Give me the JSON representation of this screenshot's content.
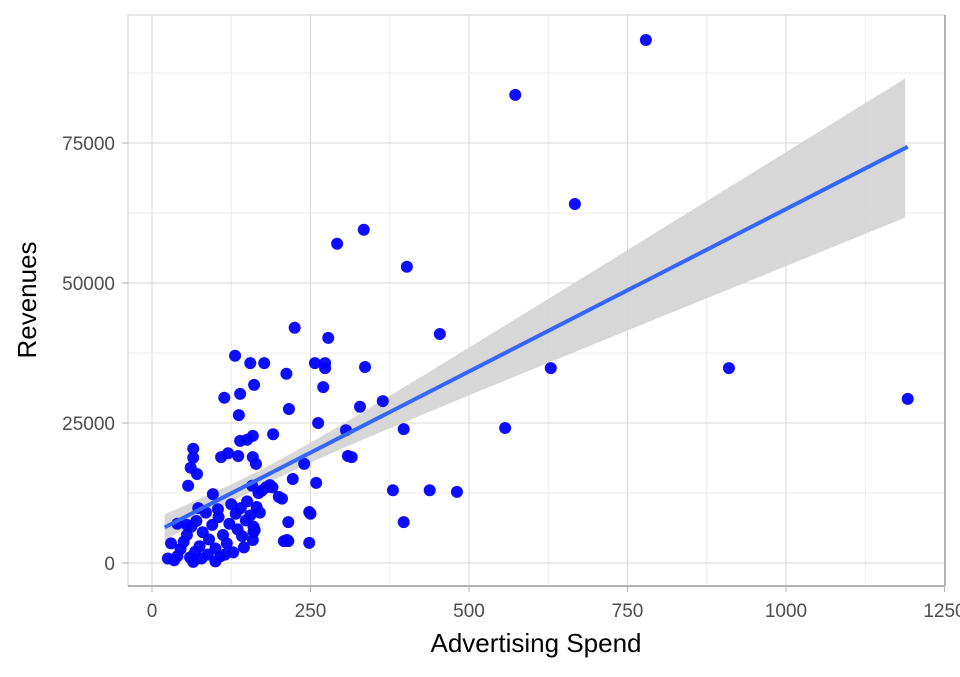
{
  "chart_data": {
    "type": "scatter",
    "title": "",
    "xlabel": "Advertising Spend",
    "ylabel": "Revenues",
    "xlim": [
      -35,
      1250
    ],
    "ylim": [
      -4000,
      98500
    ],
    "xticks": [
      0,
      250,
      500,
      750,
      1000,
      1250
    ],
    "xtick_labels": [
      "0",
      "250",
      "500",
      "750",
      "1000",
      "1250"
    ],
    "yticks": [
      0,
      25000,
      50000,
      75000
    ],
    "ytick_labels": [
      "0",
      "25000",
      "50000",
      "75000"
    ],
    "grid": true,
    "point_color": "#0000FF",
    "fit_color": "#3366FF",
    "ci_color": "#D3D3D3",
    "fit": {
      "method": "linear",
      "intercept": 5200,
      "slope": 58,
      "x_range": [
        20,
        1192
      ],
      "ci_center": 170,
      "ci_min_half_width": 1500,
      "ci_curvature": 146.9
    },
    "points": [
      [
        779,
        93400
      ],
      [
        573,
        83600
      ],
      [
        667,
        64100
      ],
      [
        629,
        34800
      ],
      [
        910,
        34800
      ],
      [
        1192,
        29300
      ],
      [
        557,
        24100
      ],
      [
        454,
        40900
      ],
      [
        402,
        52900
      ],
      [
        334,
        59500
      ],
      [
        292,
        57000
      ],
      [
        225,
        42000
      ],
      [
        278,
        40200
      ],
      [
        336,
        35000
      ],
      [
        364,
        28900
      ],
      [
        328,
        27900
      ],
      [
        397,
        23900
      ],
      [
        262,
        25000
      ],
      [
        306,
        23700
      ],
      [
        309,
        19100
      ],
      [
        315,
        18900
      ],
      [
        380,
        13000
      ],
      [
        438,
        13000
      ],
      [
        481,
        12700
      ],
      [
        397,
        7300
      ],
      [
        131,
        37000
      ],
      [
        155,
        35700
      ],
      [
        177,
        35700
      ],
      [
        212,
        33800
      ],
      [
        161,
        31800
      ],
      [
        139,
        30200
      ],
      [
        114,
        29500
      ],
      [
        137,
        26400
      ],
      [
        216,
        27500
      ],
      [
        257,
        35700
      ],
      [
        273,
        35700
      ],
      [
        273,
        34800
      ],
      [
        270,
        31400
      ],
      [
        191,
        23000
      ],
      [
        159,
        22700
      ],
      [
        150,
        22000
      ],
      [
        139,
        21800
      ],
      [
        120,
        19600
      ],
      [
        109,
        18900
      ],
      [
        136,
        19100
      ],
      [
        159,
        18900
      ],
      [
        164,
        17700
      ],
      [
        65,
        20400
      ],
      [
        65,
        18800
      ],
      [
        61,
        17000
      ],
      [
        71,
        15900
      ],
      [
        57,
        13800
      ],
      [
        222,
        15000
      ],
      [
        200,
        11800
      ],
      [
        259,
        14300
      ],
      [
        248,
        9100
      ],
      [
        215,
        7300
      ],
      [
        248,
        3600
      ],
      [
        213,
        4100
      ],
      [
        208,
        3900
      ],
      [
        159,
        4100
      ],
      [
        162,
        5900
      ],
      [
        240,
        17700
      ],
      [
        186,
        13900
      ],
      [
        173,
        12900
      ],
      [
        158,
        13800
      ],
      [
        96,
        12300
      ],
      [
        73,
        9800
      ],
      [
        104,
        9600
      ],
      [
        25,
        800
      ],
      [
        35,
        500
      ],
      [
        40,
        1200
      ],
      [
        45,
        2500
      ],
      [
        50,
        3800
      ],
      [
        55,
        5000
      ],
      [
        60,
        1000
      ],
      [
        62,
        6500
      ],
      [
        68,
        2000
      ],
      [
        70,
        7500
      ],
      [
        75,
        3000
      ],
      [
        78,
        800
      ],
      [
        80,
        5500
      ],
      [
        85,
        9000
      ],
      [
        88,
        1500
      ],
      [
        90,
        4200
      ],
      [
        95,
        6800
      ],
      [
        100,
        2600
      ],
      [
        105,
        8200
      ],
      [
        108,
        1200
      ],
      [
        112,
        5000
      ],
      [
        118,
        3500
      ],
      [
        122,
        7000
      ],
      [
        125,
        10500
      ],
      [
        128,
        1900
      ],
      [
        132,
        8800
      ],
      [
        135,
        6000
      ],
      [
        140,
        9800
      ],
      [
        142,
        4800
      ],
      [
        148,
        7600
      ],
      [
        150,
        11000
      ],
      [
        155,
        8500
      ],
      [
        160,
        6500
      ],
      [
        165,
        10000
      ],
      [
        168,
        12500
      ],
      [
        170,
        9000
      ],
      [
        30,
        3500
      ],
      [
        40,
        7000
      ],
      [
        55,
        6800
      ],
      [
        65,
        200
      ],
      [
        100,
        300
      ],
      [
        115,
        1500
      ],
      [
        145,
        2800
      ],
      [
        160,
        5500
      ],
      [
        180,
        13500
      ],
      [
        190,
        13500
      ],
      [
        205,
        11500
      ],
      [
        215,
        3900
      ],
      [
        250,
        8800
      ]
    ]
  }
}
